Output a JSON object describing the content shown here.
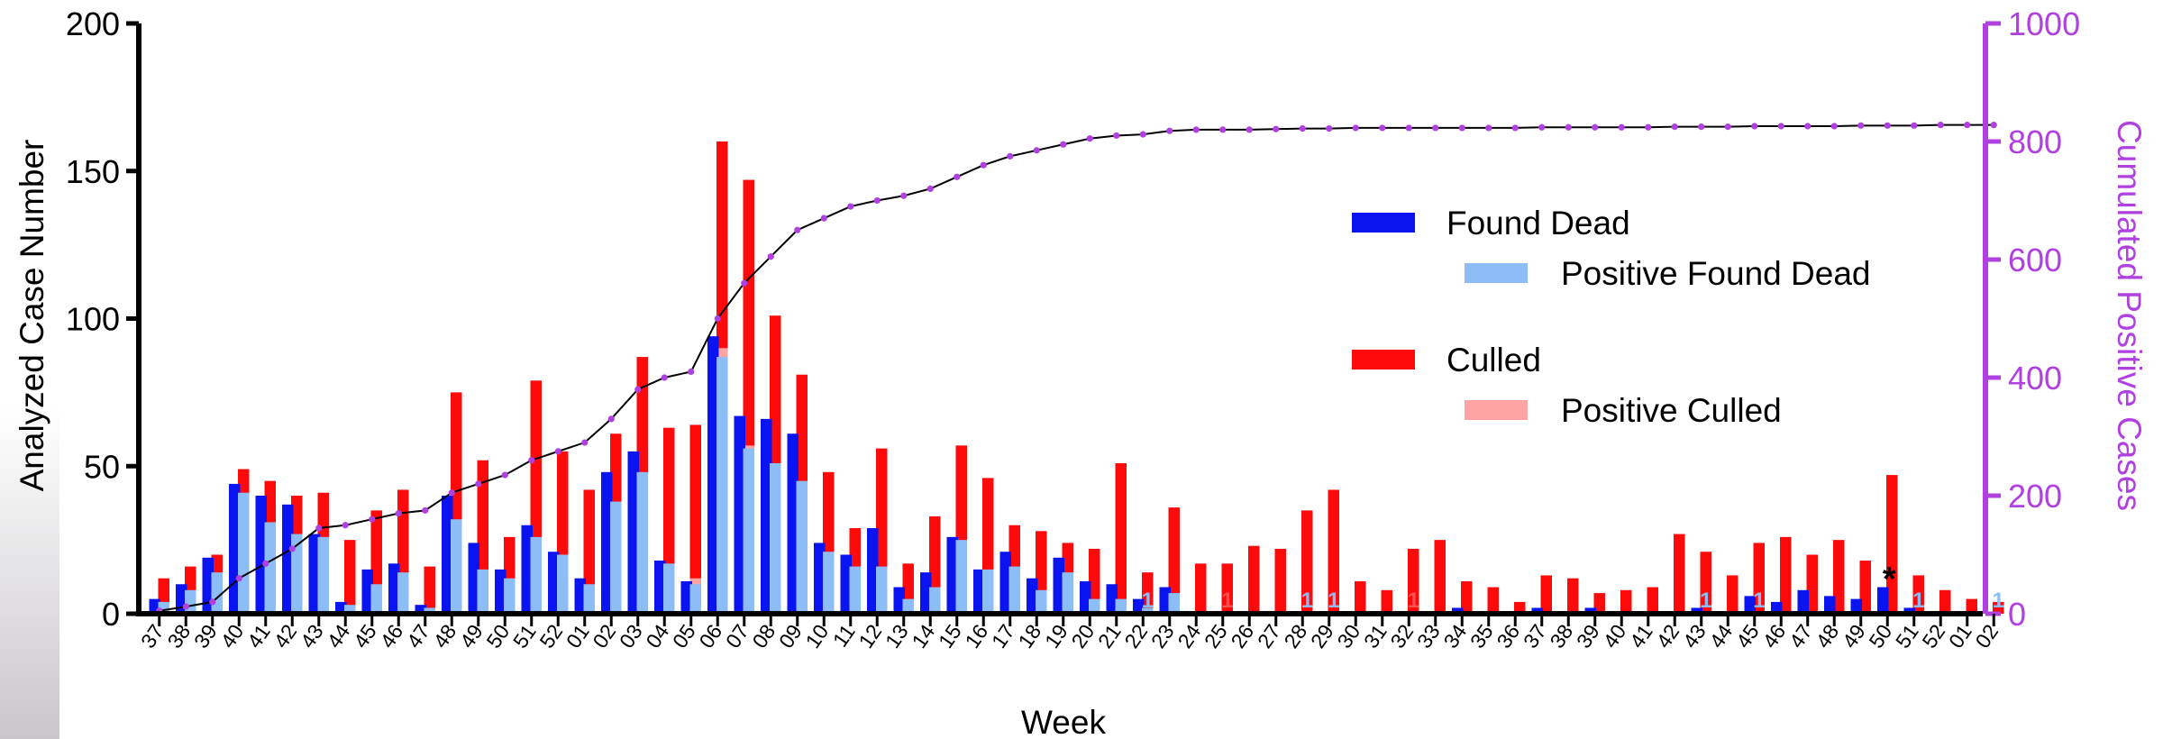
{
  "chart_data": {
    "type": "bar",
    "xlabel": "Week",
    "ylabel": "Analyzed Case Number",
    "y2label": "Cumulated Positive Cases",
    "ylim": [
      0,
      200
    ],
    "y2lim": [
      0,
      1000
    ],
    "yticks": [
      0,
      50,
      100,
      150,
      200
    ],
    "y2ticks": [
      0,
      200,
      400,
      600,
      800,
      1000
    ],
    "grid": false,
    "legend_placement": "top-right",
    "categories": [
      "37",
      "38",
      "39",
      "40",
      "41",
      "42",
      "43",
      "44",
      "45",
      "46",
      "47",
      "48",
      "49",
      "50",
      "51",
      "52",
      "01",
      "02",
      "03",
      "04",
      "05",
      "06",
      "07",
      "08",
      "09",
      "10",
      "11",
      "12",
      "13",
      "14",
      "15",
      "16",
      "17",
      "18",
      "19",
      "20",
      "21",
      "22",
      "23",
      "24",
      "25",
      "26",
      "27",
      "28",
      "29",
      "30",
      "31",
      "32",
      "33",
      "34",
      "35",
      "36",
      "37",
      "38",
      "39",
      "40",
      "41",
      "42",
      "43",
      "44",
      "45",
      "46",
      "47",
      "48",
      "49",
      "50",
      "51",
      "52",
      "01",
      "02"
    ],
    "series": [
      {
        "name": "Found Dead",
        "color": "#0a14f0",
        "values": [
          5,
          10,
          19,
          44,
          40,
          37,
          27,
          4,
          15,
          17,
          3,
          40,
          24,
          15,
          30,
          21,
          12,
          48,
          55,
          18,
          11,
          94,
          67,
          66,
          61,
          24,
          20,
          29,
          9,
          14,
          26,
          15,
          21,
          12,
          19,
          11,
          10,
          5,
          9,
          0,
          0,
          0,
          0,
          0,
          0,
          0,
          0,
          0,
          0,
          2,
          0,
          0,
          2,
          0,
          2,
          0,
          0,
          0,
          2,
          0,
          6,
          4,
          8,
          6,
          5,
          9,
          2,
          0,
          0,
          0
        ]
      },
      {
        "name": "Positive Found Dead",
        "color": "#8dbdf7",
        "values": [
          4,
          8,
          14,
          41,
          31,
          27,
          26,
          3,
          10,
          14,
          2,
          32,
          15,
          12,
          26,
          20,
          10,
          38,
          48,
          17,
          10,
          87,
          56,
          51,
          45,
          21,
          16,
          16,
          5,
          9,
          25,
          15,
          16,
          8,
          14,
          5,
          5,
          2,
          7,
          0,
          0,
          0,
          0,
          0,
          0,
          0,
          0,
          0,
          0,
          0,
          0,
          0,
          0,
          0,
          0,
          0,
          0,
          0,
          0,
          0,
          0,
          0,
          0,
          0,
          0,
          0,
          0,
          0,
          0,
          0
        ]
      },
      {
        "name": "Culled",
        "color": "#ff0a0a",
        "values": [
          12,
          16,
          20,
          49,
          45,
          40,
          41,
          25,
          35,
          42,
          16,
          75,
          52,
          26,
          79,
          55,
          42,
          61,
          87,
          63,
          64,
          160,
          147,
          101,
          81,
          48,
          29,
          56,
          17,
          33,
          57,
          46,
          30,
          28,
          24,
          22,
          51,
          14,
          36,
          17,
          17,
          23,
          22,
          35,
          42,
          11,
          8,
          22,
          25,
          11,
          9,
          4,
          13,
          12,
          7,
          8,
          9,
          27,
          21,
          13,
          24,
          26,
          20,
          25,
          18,
          47,
          13,
          8,
          5,
          4
        ]
      },
      {
        "name": "Positive Culled",
        "color": "#ffa3a3",
        "values": [
          0,
          0,
          0,
          0,
          0,
          0,
          0,
          0,
          0,
          0,
          0,
          0,
          0,
          0,
          0,
          0,
          0,
          0,
          0,
          0,
          12,
          90,
          57,
          0,
          0,
          0,
          0,
          0,
          0,
          0,
          0,
          0,
          0,
          0,
          0,
          0,
          0,
          0,
          0,
          0,
          0,
          0,
          0,
          0,
          0,
          0,
          0,
          0,
          0,
          0,
          0,
          0,
          0,
          0,
          0,
          0,
          0,
          0,
          0,
          0,
          0,
          0,
          0,
          0,
          0,
          0,
          0,
          0,
          0,
          0
        ]
      },
      {
        "name": "Cumulated Positive Cases",
        "color": "#b040e0",
        "axis": "right",
        "type": "line",
        "values": [
          5,
          12,
          20,
          60,
          85,
          110,
          145,
          150,
          160,
          170,
          175,
          205,
          220,
          235,
          260,
          275,
          290,
          330,
          380,
          400,
          410,
          500,
          560,
          605,
          650,
          670,
          690,
          700,
          708,
          720,
          740,
          760,
          775,
          785,
          795,
          805,
          810,
          812,
          818,
          820,
          820,
          820,
          821,
          822,
          822,
          823,
          823,
          823,
          823,
          823,
          823,
          823,
          824,
          824,
          824,
          824,
          824,
          825,
          825,
          825,
          826,
          826,
          826,
          826,
          827,
          827,
          827,
          828,
          828,
          828
        ]
      }
    ],
    "annotations": [
      {
        "category_index": 40,
        "text": "1",
        "color": "#ff5050"
      },
      {
        "category_index": 43,
        "text": "1",
        "color": "#8dbdf7"
      },
      {
        "category_index": 44,
        "text": "1",
        "color": "#8dbdf7"
      },
      {
        "category_index": 47,
        "text": "1",
        "color": "#ff5050"
      },
      {
        "category_index": 37,
        "text": "1",
        "color": "#8dbdf7"
      },
      {
        "category_index": 58,
        "text": "1",
        "color": "#8dbdf7"
      },
      {
        "category_index": 60,
        "text": "1",
        "color": "#8dbdf7"
      },
      {
        "category_index": 66,
        "text": "1",
        "color": "#8dbdf7"
      },
      {
        "category_index": 69,
        "text": "1",
        "color": "#8dbdf7"
      },
      {
        "category_index": 65,
        "text": "*",
        "color": "#000000"
      }
    ]
  }
}
